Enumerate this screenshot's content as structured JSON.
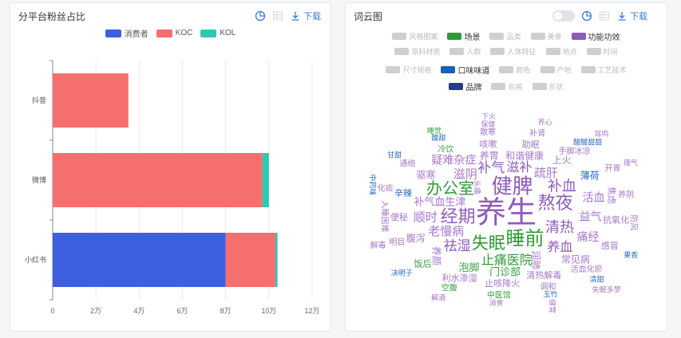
{
  "left_panel": {
    "title": "分平台粉丝占比",
    "download_label": "下载",
    "legend": [
      {
        "name": "消费者",
        "color": "#3e5fe0"
      },
      {
        "name": "KOC",
        "color": "#f56f6f"
      },
      {
        "name": "KOL",
        "color": "#2ec8b5"
      }
    ]
  },
  "chart_data": {
    "type": "bar",
    "orientation": "horizontal",
    "stacked": true,
    "categories": [
      "小红书",
      "微博",
      "抖音"
    ],
    "series": [
      {
        "name": "消费者",
        "color": "#3e5fe0",
        "values": [
          80000,
          0,
          0
        ]
      },
      {
        "name": "KOC",
        "color": "#f56f6f",
        "values": [
          23000,
          97000,
          35000
        ]
      },
      {
        "name": "KOL",
        "color": "#2ec8b5",
        "values": [
          1000,
          3000,
          0
        ]
      }
    ],
    "x_ticks": [
      {
        "value": 0,
        "label": "0"
      },
      {
        "value": 20000,
        "label": "2万"
      },
      {
        "value": 40000,
        "label": "4万"
      },
      {
        "value": 60000,
        "label": "6万"
      },
      {
        "value": 80000,
        "label": "8万"
      },
      {
        "value": 100000,
        "label": "10万"
      },
      {
        "value": 120000,
        "label": "12万"
      }
    ],
    "xlim": [
      0,
      120000
    ],
    "grid": true
  },
  "right_panel": {
    "title": "词云图",
    "download_label": "下载",
    "tag_rows": [
      [
        {
          "label": "风格图案",
          "color": "#cfcfcf",
          "on": false
        },
        {
          "label": "场景",
          "color": "#2e9a36",
          "on": true
        },
        {
          "label": "品类",
          "color": "#cfcfcf",
          "on": false
        },
        {
          "label": "美食",
          "color": "#cfcfcf",
          "on": false
        },
        {
          "label": "功能功效",
          "color": "#8e5bb9",
          "on": true
        }
      ],
      [
        {
          "label": "原料材质",
          "color": "#cfcfcf",
          "on": false
        },
        {
          "label": "人群",
          "color": "#cfcfcf",
          "on": false
        },
        {
          "label": "人体特征",
          "color": "#cfcfcf",
          "on": false
        },
        {
          "label": "地点",
          "color": "#cfcfcf",
          "on": false
        },
        {
          "label": "时间",
          "color": "#cfcfcf",
          "on": false
        }
      ],
      [
        {
          "label": "尺寸规格",
          "color": "#cfcfcf",
          "on": false
        },
        {
          "label": "口味味道",
          "color": "#1a5fb4",
          "on": true
        },
        {
          "label": "颜色",
          "color": "#cfcfcf",
          "on": false
        },
        {
          "label": "产地",
          "color": "#cfcfcf",
          "on": false
        },
        {
          "label": "工艺技术",
          "color": "#cfcfcf",
          "on": false
        }
      ],
      [
        {
          "label": "品牌",
          "color": "#26388f",
          "on": true
        },
        {
          "label": "包装",
          "color": "#cfcfcf",
          "on": false
        },
        {
          "label": "形状",
          "color": "#cfcfcf",
          "on": false
        }
      ]
    ],
    "words": [
      {
        "t": "养生",
        "c": "p"
      },
      {
        "t": "健脾",
        "c": "p"
      },
      {
        "t": "睡前",
        "c": "g"
      },
      {
        "t": "经期",
        "c": "p"
      },
      {
        "t": "熬夜",
        "c": "p"
      },
      {
        "t": "失眠",
        "c": "g"
      },
      {
        "t": "办公室",
        "c": "g"
      },
      {
        "t": "清热",
        "c": "p"
      },
      {
        "t": "补血",
        "c": "p"
      },
      {
        "t": "祛湿",
        "c": "p"
      },
      {
        "t": "补气",
        "c": "p"
      },
      {
        "t": "滋补",
        "c": "p"
      },
      {
        "t": "养血",
        "c": "p"
      },
      {
        "t": "止痛医院",
        "c": "g"
      },
      {
        "t": "老慢病",
        "c": "p"
      },
      {
        "t": "滋阴",
        "c": "p"
      },
      {
        "t": "疏肝",
        "c": "p"
      },
      {
        "t": "顺时",
        "c": "p"
      },
      {
        "t": "益气",
        "c": "p"
      },
      {
        "t": "活血",
        "c": "p"
      },
      {
        "t": "痛经",
        "c": "p"
      },
      {
        "t": "疑难杂症",
        "c": "p"
      },
      {
        "t": "补气血生津",
        "c": "p"
      },
      {
        "t": "门诊部",
        "c": "g"
      },
      {
        "t": "泡脚",
        "c": "g"
      },
      {
        "t": "和谐健康",
        "c": "p"
      },
      {
        "t": "润肺",
        "c": "p"
      },
      {
        "t": "养胃",
        "c": "p"
      },
      {
        "t": "腹泻",
        "c": "p"
      },
      {
        "t": "驱寒",
        "c": "p"
      },
      {
        "t": "上火",
        "c": "p"
      },
      {
        "t": "薄荷",
        "c": "b"
      },
      {
        "t": "常见病",
        "c": "p"
      },
      {
        "t": "养颜",
        "c": "p"
      },
      {
        "t": "清热解毒",
        "c": "p"
      },
      {
        "t": "便秘",
        "c": "p"
      },
      {
        "t": "抗氧化",
        "c": "p"
      },
      {
        "t": "辛辣",
        "c": "b"
      },
      {
        "t": "咳嗽",
        "c": "p"
      },
      {
        "t": "助眠",
        "c": "p"
      },
      {
        "t": "焦虑",
        "c": "p"
      },
      {
        "t": "感冒",
        "c": "p"
      },
      {
        "t": "止咳降火",
        "c": "p"
      },
      {
        "t": "利水渗湿",
        "c": "p"
      },
      {
        "t": "饭后",
        "c": "g"
      },
      {
        "t": "明目",
        "c": "p"
      },
      {
        "t": "冷饮",
        "c": "g"
      },
      {
        "t": "入睡困难",
        "c": "p"
      },
      {
        "t": "手脚冰凉",
        "c": "p"
      },
      {
        "t": "活血化瘀",
        "c": "p"
      },
      {
        "t": "养阴",
        "c": "p"
      },
      {
        "t": "化痰",
        "c": "p"
      },
      {
        "t": "通络",
        "c": "p"
      },
      {
        "t": "开胃",
        "c": "p"
      },
      {
        "t": "防风",
        "c": "p"
      },
      {
        "t": "调和",
        "c": "p"
      },
      {
        "t": "散寒",
        "c": "p"
      },
      {
        "t": "补肾",
        "c": "p"
      },
      {
        "t": "中医馆",
        "c": "g"
      },
      {
        "t": "空腹",
        "c": "g"
      },
      {
        "t": "解毒",
        "c": "p"
      },
      {
        "t": "头痛",
        "c": "p"
      },
      {
        "t": "酸甜",
        "c": "b"
      },
      {
        "t": "酸酸甜甜",
        "c": "b"
      },
      {
        "t": "果香",
        "c": "b"
      },
      {
        "t": "清甜",
        "c": "b"
      },
      {
        "t": "玉竹",
        "c": "b"
      },
      {
        "t": "决明子",
        "c": "b"
      },
      {
        "t": "中药味",
        "c": "b"
      },
      {
        "t": "甘甜",
        "c": "b"
      },
      {
        "t": "保健",
        "c": "p"
      },
      {
        "t": "理气",
        "c": "p"
      },
      {
        "t": "消食",
        "c": "p"
      },
      {
        "t": "睡觉",
        "c": "g"
      },
      {
        "t": "养心",
        "c": "p"
      },
      {
        "t": "健胃",
        "c": "p"
      },
      {
        "t": "解酒",
        "c": "p"
      },
      {
        "t": "下火",
        "c": "p"
      },
      {
        "t": "耳鸣",
        "c": "p"
      },
      {
        "t": "失眠多梦",
        "c": "p"
      }
    ]
  }
}
